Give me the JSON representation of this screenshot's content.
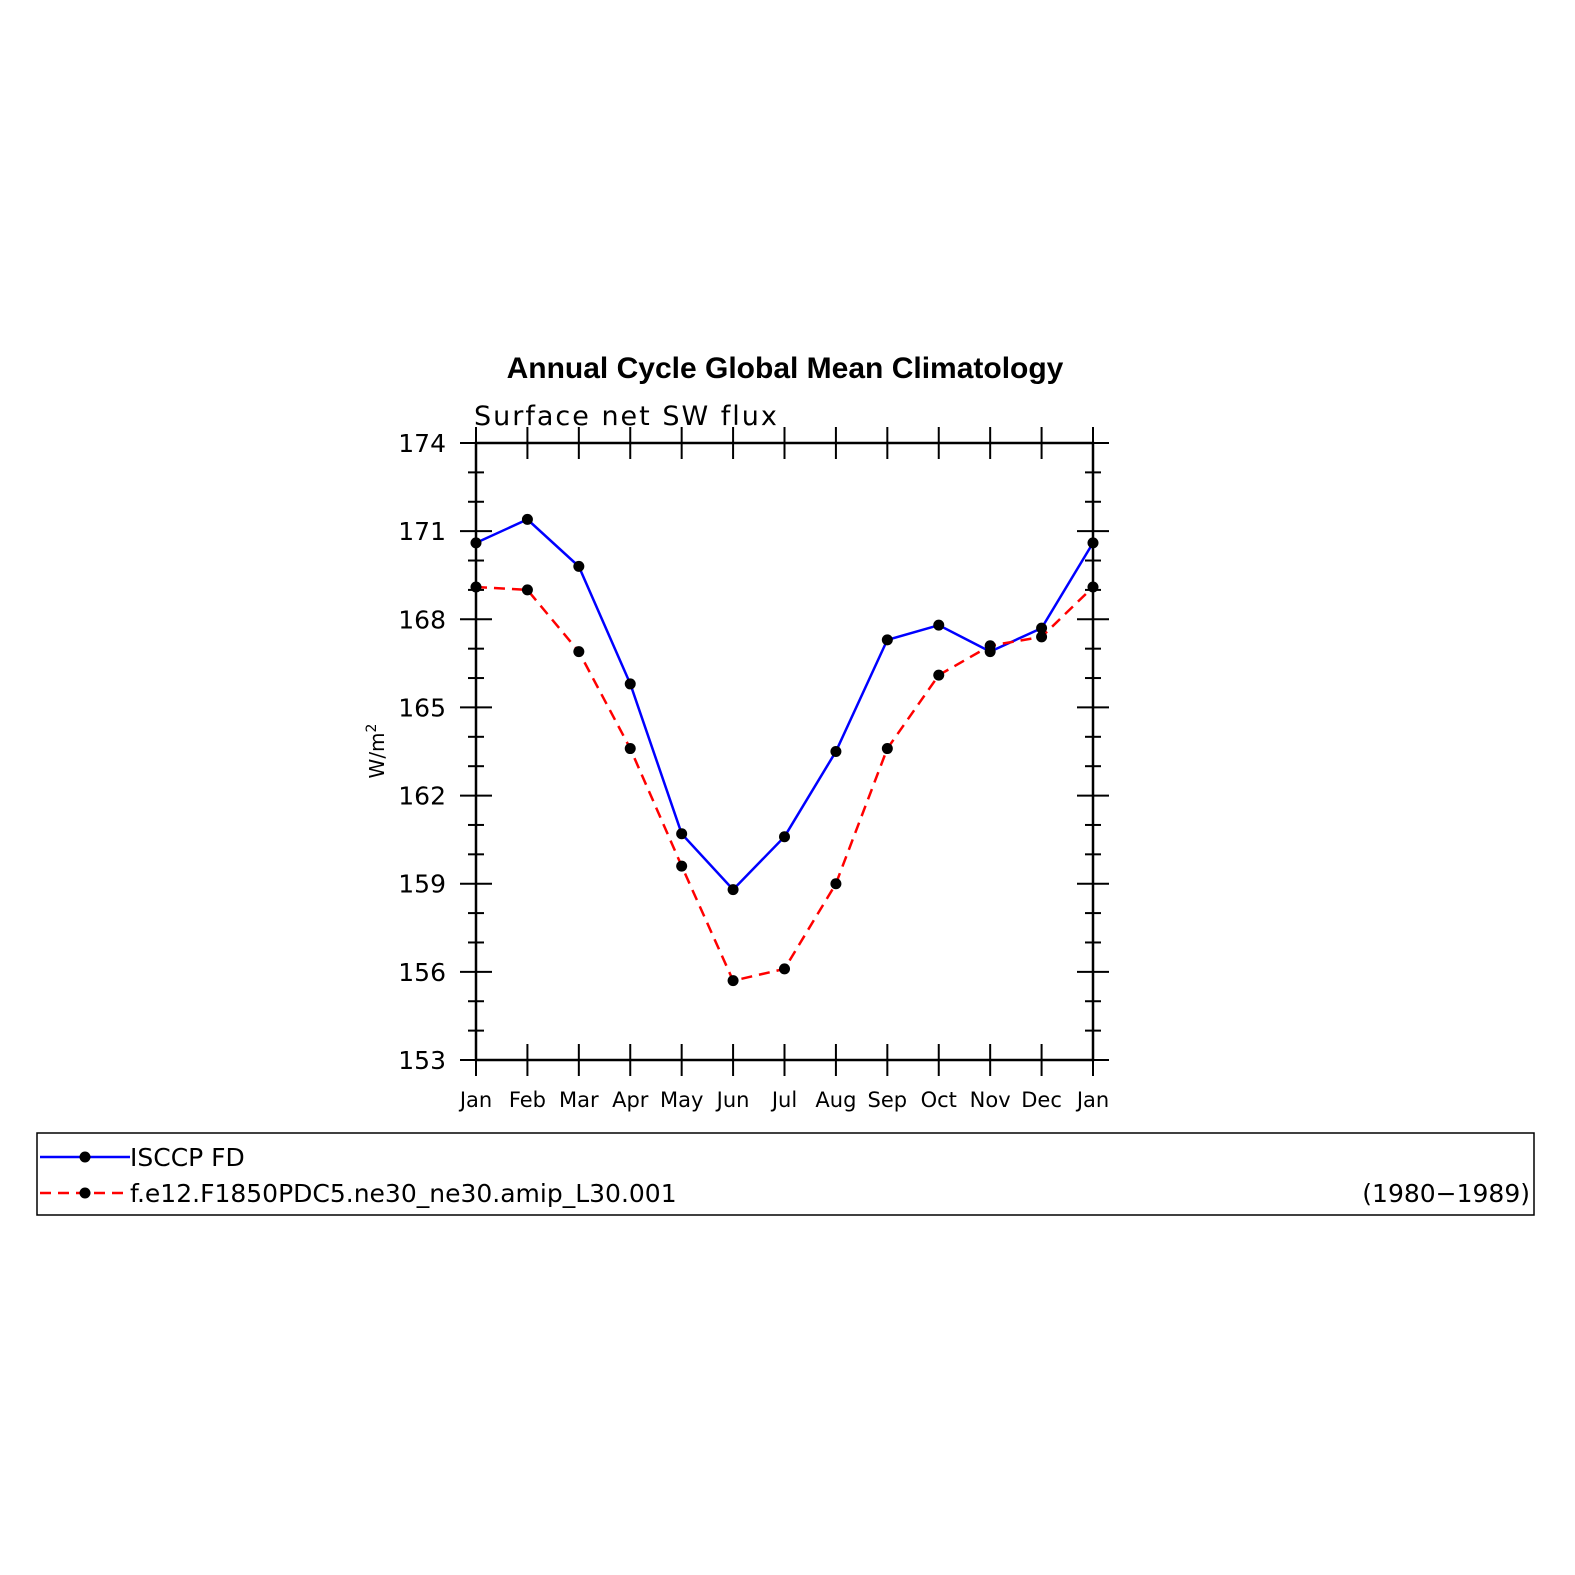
{
  "chart_data": {
    "type": "line",
    "title": "Annual Cycle Global Mean Climatology",
    "subtitle": "Surface net SW flux",
    "ylabel": "W/m",
    "ylabel_superscript": "2",
    "xlabel": "",
    "ylim": [
      153,
      174
    ],
    "yticks": [
      "153",
      "156",
      "159",
      "162",
      "165",
      "168",
      "171",
      "174"
    ],
    "categories": [
      "Jan",
      "Feb",
      "Mar",
      "Apr",
      "May",
      "Jun",
      "Jul",
      "Aug",
      "Sep",
      "Oct",
      "Nov",
      "Dec",
      "Jan"
    ],
    "grid": false,
    "legend_position": "bottom",
    "series": [
      {
        "name": "ISCCP FD",
        "color": "#0000ff",
        "dash": "solid",
        "marker": "filled-circle",
        "values": [
          170.6,
          171.4,
          169.8,
          165.8,
          160.7,
          158.8,
          160.6,
          163.5,
          167.3,
          167.8,
          166.9,
          167.7,
          170.6
        ]
      },
      {
        "name": "f.e12.F1850PDC5.ne30_ne30.amip_L30.001",
        "color": "#ff0000",
        "dash": "dashed",
        "marker": "filled-circle",
        "values": [
          169.1,
          169.0,
          166.9,
          163.6,
          159.6,
          155.7,
          156.1,
          159.0,
          163.6,
          166.1,
          167.1,
          167.4,
          169.1
        ]
      }
    ],
    "annotation": "(1980−1989)"
  }
}
